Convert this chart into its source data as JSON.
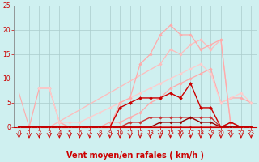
{
  "bg_color": "#cff0f0",
  "grid_color": "#aacccc",
  "xlabel": "Vent moyen/en rafales ( km/h )",
  "xlabel_color": "#cc0000",
  "xlabel_fontsize": 7.0,
  "tick_color": "#cc0000",
  "xlim": [
    -0.5,
    23.5
  ],
  "ylim": [
    0,
    25
  ],
  "yticks": [
    0,
    5,
    10,
    15,
    20,
    25
  ],
  "xticks": [
    0,
    1,
    2,
    3,
    4,
    5,
    6,
    7,
    8,
    9,
    10,
    11,
    12,
    13,
    14,
    15,
    16,
    17,
    18,
    19,
    20,
    21,
    22,
    23
  ],
  "series": [
    {
      "x": [
        0,
        1
      ],
      "y": [
        7,
        0
      ],
      "color": "#ffaaaa",
      "lw": 0.8,
      "marker": null
    },
    {
      "x": [
        0,
        1,
        2,
        3,
        4,
        5,
        6,
        7,
        8,
        9,
        10,
        11,
        12,
        13,
        14,
        15,
        16,
        17,
        18,
        19,
        20,
        21,
        22,
        23
      ],
      "y": [
        0,
        0,
        8,
        8,
        1,
        0,
        0,
        0,
        0,
        1,
        1,
        2,
        3,
        5,
        6,
        8,
        9,
        10,
        11,
        12,
        5,
        6,
        6,
        5
      ],
      "color": "#ffaaaa",
      "lw": 0.9,
      "marker": "D",
      "ms": 1.8
    },
    {
      "x": [
        0,
        2,
        3,
        14,
        15,
        16,
        17,
        18,
        19,
        20,
        21,
        22,
        23
      ],
      "y": [
        0,
        0,
        0,
        13,
        16,
        15,
        17,
        18,
        16,
        18,
        0,
        0,
        0
      ],
      "color": "#ffbbbb",
      "lw": 0.9,
      "marker": "D",
      "ms": 1.8
    },
    {
      "x": [
        2,
        3,
        4,
        5,
        6,
        7,
        8,
        9,
        10,
        11,
        12,
        13,
        14,
        15,
        16,
        17,
        18,
        19,
        20,
        21,
        22,
        23
      ],
      "y": [
        8,
        8,
        1,
        1,
        1,
        2,
        3,
        4,
        5,
        6,
        7,
        8,
        9,
        10,
        11,
        12,
        13,
        11,
        5,
        6,
        7,
        5
      ],
      "color": "#ffcccc",
      "lw": 0.9,
      "marker": "D",
      "ms": 1.8
    },
    {
      "x": [
        0,
        1,
        2,
        3,
        4,
        5,
        6,
        7,
        8,
        9,
        10,
        11,
        12,
        13,
        14,
        15,
        16,
        17,
        18,
        19,
        20,
        21,
        22,
        23
      ],
      "y": [
        0,
        0,
        0,
        0,
        0,
        0,
        0,
        0,
        0,
        0,
        5,
        6,
        13,
        15,
        19,
        21,
        19,
        19,
        16,
        17,
        18,
        0,
        0,
        0
      ],
      "color": "#ffaaaa",
      "lw": 0.9,
      "marker": "D",
      "ms": 1.8
    },
    {
      "x": [
        0,
        1,
        2,
        3,
        4,
        5,
        6,
        7,
        8,
        9,
        10,
        11,
        12,
        13,
        14,
        15,
        16,
        17,
        18,
        19,
        20,
        21,
        22,
        23
      ],
      "y": [
        0,
        0,
        0,
        0,
        0,
        0,
        0,
        0,
        0,
        0,
        4,
        5,
        6,
        6,
        6,
        7,
        6,
        9,
        4,
        4,
        0,
        0,
        0,
        0
      ],
      "color": "#cc0000",
      "lw": 1.0,
      "marker": "D",
      "ms": 2.0
    },
    {
      "x": [
        0,
        1,
        2,
        3,
        4,
        5,
        6,
        7,
        8,
        9,
        10,
        11,
        12,
        13,
        14,
        15,
        16,
        17,
        18,
        19,
        20,
        21,
        22,
        23
      ],
      "y": [
        0,
        0,
        0,
        0,
        0,
        0,
        0,
        0,
        0,
        0,
        0,
        1,
        1,
        2,
        2,
        2,
        2,
        2,
        2,
        2,
        0,
        1,
        0,
        0
      ],
      "color": "#cc3333",
      "lw": 1.0,
      "marker": "D",
      "ms": 1.8
    },
    {
      "x": [
        0,
        1,
        2,
        3,
        4,
        5,
        6,
        7,
        8,
        9,
        10,
        11,
        12,
        13,
        14,
        15,
        16,
        17,
        18,
        19,
        20,
        21,
        22,
        23
      ],
      "y": [
        0,
        0,
        0,
        0,
        0,
        0,
        0,
        0,
        0,
        0,
        0,
        0,
        0,
        0,
        1,
        1,
        1,
        2,
        1,
        1,
        0,
        0,
        0,
        0
      ],
      "color": "#990000",
      "lw": 1.0,
      "marker": "D",
      "ms": 1.6
    },
    {
      "x": [
        0,
        1,
        2,
        3,
        4,
        5,
        6,
        7,
        8,
        9,
        10,
        11,
        12,
        13,
        14,
        15,
        16,
        17,
        18,
        19,
        20,
        21,
        22,
        23
      ],
      "y": [
        0,
        0,
        0,
        0,
        0,
        0,
        0,
        0,
        0,
        0,
        0,
        0,
        0,
        0,
        0,
        0,
        0,
        0,
        0,
        0,
        0,
        1,
        0,
        0
      ],
      "color": "#cc0000",
      "lw": 0.8,
      "marker": "D",
      "ms": 1.5
    }
  ],
  "arrow_color": "#cc0000"
}
